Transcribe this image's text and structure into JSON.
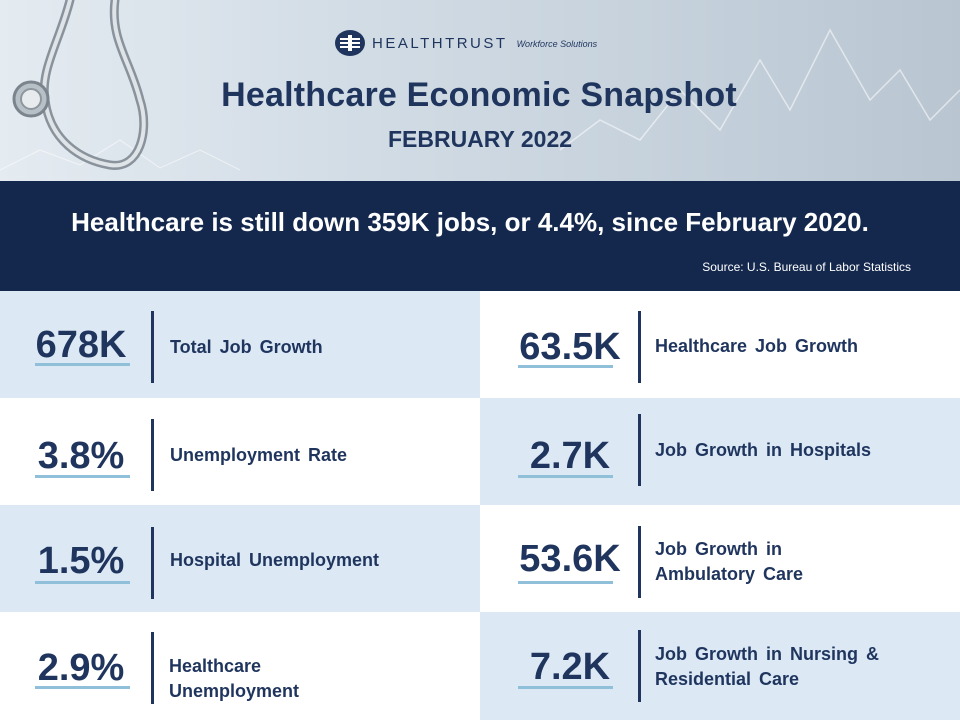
{
  "header": {
    "logo_name": "HEALTHTRUST",
    "logo_sub": "Workforce Solutions",
    "title": "Healthcare Economic Snapshot",
    "subtitle": "FEBRUARY 2022",
    "icons": [
      "stethoscope-icon",
      "heartbeat-line-icon",
      "healthtrust-logo-icon"
    ]
  },
  "banner": {
    "message": "Healthcare is still down 359K jobs, or 4.4%, since February 2020.",
    "source": "Source: U.S. Bureau of Labor Statistics"
  },
  "stats": {
    "left": [
      {
        "value": "678K",
        "label": "Total Job Growth"
      },
      {
        "value": "3.8%",
        "label": "Unemployment Rate"
      },
      {
        "value": "1.5%",
        "label": "Hospital Unemployment"
      },
      {
        "value": "2.9%",
        "label_line1": "Healthcare",
        "label_line2": "Unemployment"
      }
    ],
    "right": [
      {
        "value": "63.5K",
        "label": "Healthcare Job Growth"
      },
      {
        "value": "2.7K",
        "label": "Job Growth in Hospitals"
      },
      {
        "value": "53.6K",
        "label_line1": "Job Growth in",
        "label_line2": "Ambulatory Care"
      },
      {
        "value": "7.2K",
        "label_line1": "Job Growth in Nursing &",
        "label_line2": "Residential Care"
      }
    ]
  },
  "colors": {
    "navy": "#1f355e",
    "banner": "#14284d",
    "light_cell": "#dce9f5",
    "underline": "#8fbfd9"
  }
}
